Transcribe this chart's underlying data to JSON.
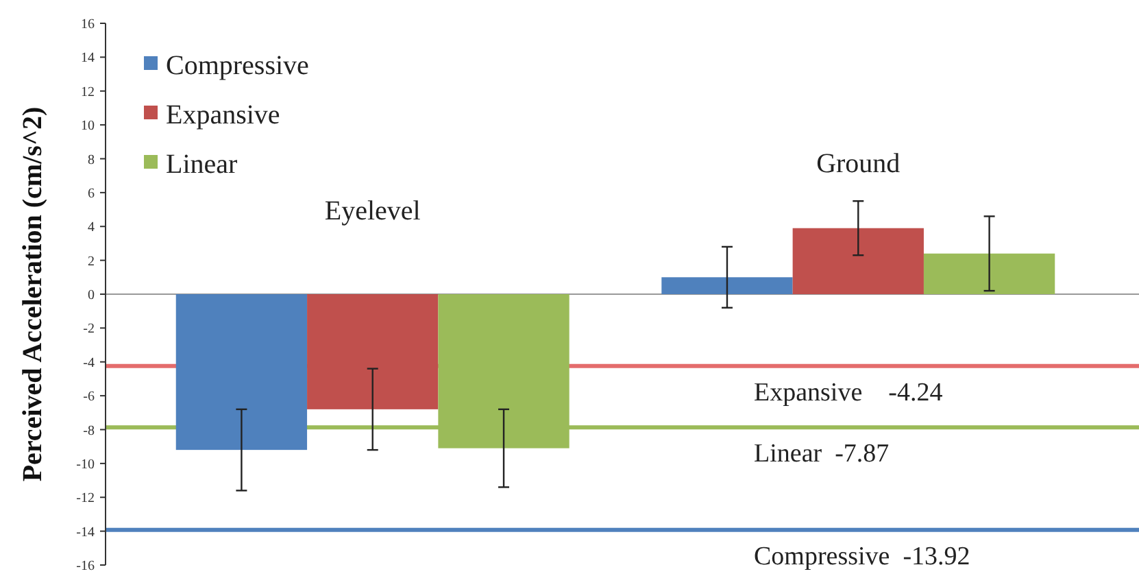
{
  "chart_data": {
    "type": "bar",
    "ylabel": "Perceived Acceleration (cm/s^2)",
    "categories": [
      "Eyelevel",
      "Ground"
    ],
    "series": [
      {
        "name": "Compressive",
        "color": "#4f81bd",
        "values": [
          -9.2,
          1
        ],
        "errors": [
          2.4,
          1.8
        ]
      },
      {
        "name": "Expansive",
        "color": "#c0504d",
        "values": [
          -6.8,
          3.9
        ],
        "errors": [
          2.4,
          1.6
        ]
      },
      {
        "name": "Linear",
        "color": "#9bbb59",
        "values": [
          -9.1,
          2.4
        ],
        "errors": [
          2.3,
          2.2
        ]
      }
    ],
    "ylim": [
      -16,
      16
    ],
    "yticks": [
      -16,
      -14,
      -12,
      -10,
      -8,
      -6,
      -4,
      -2,
      0,
      2,
      4,
      6,
      8,
      10,
      12,
      14,
      16
    ],
    "ref_lines": [
      {
        "axis": "y",
        "value": -4.24,
        "label": "Expansive    -4.24",
        "color": "#e46c6c"
      },
      {
        "axis": "y",
        "value": -7.87,
        "label": "Linear  -7.87",
        "color": "#9bbb59"
      },
      {
        "axis": "y",
        "value": -13.92,
        "label": "Compressive  -13.92",
        "color": "#4f81bd"
      }
    ],
    "legend": "top left",
    "grid": false
  }
}
